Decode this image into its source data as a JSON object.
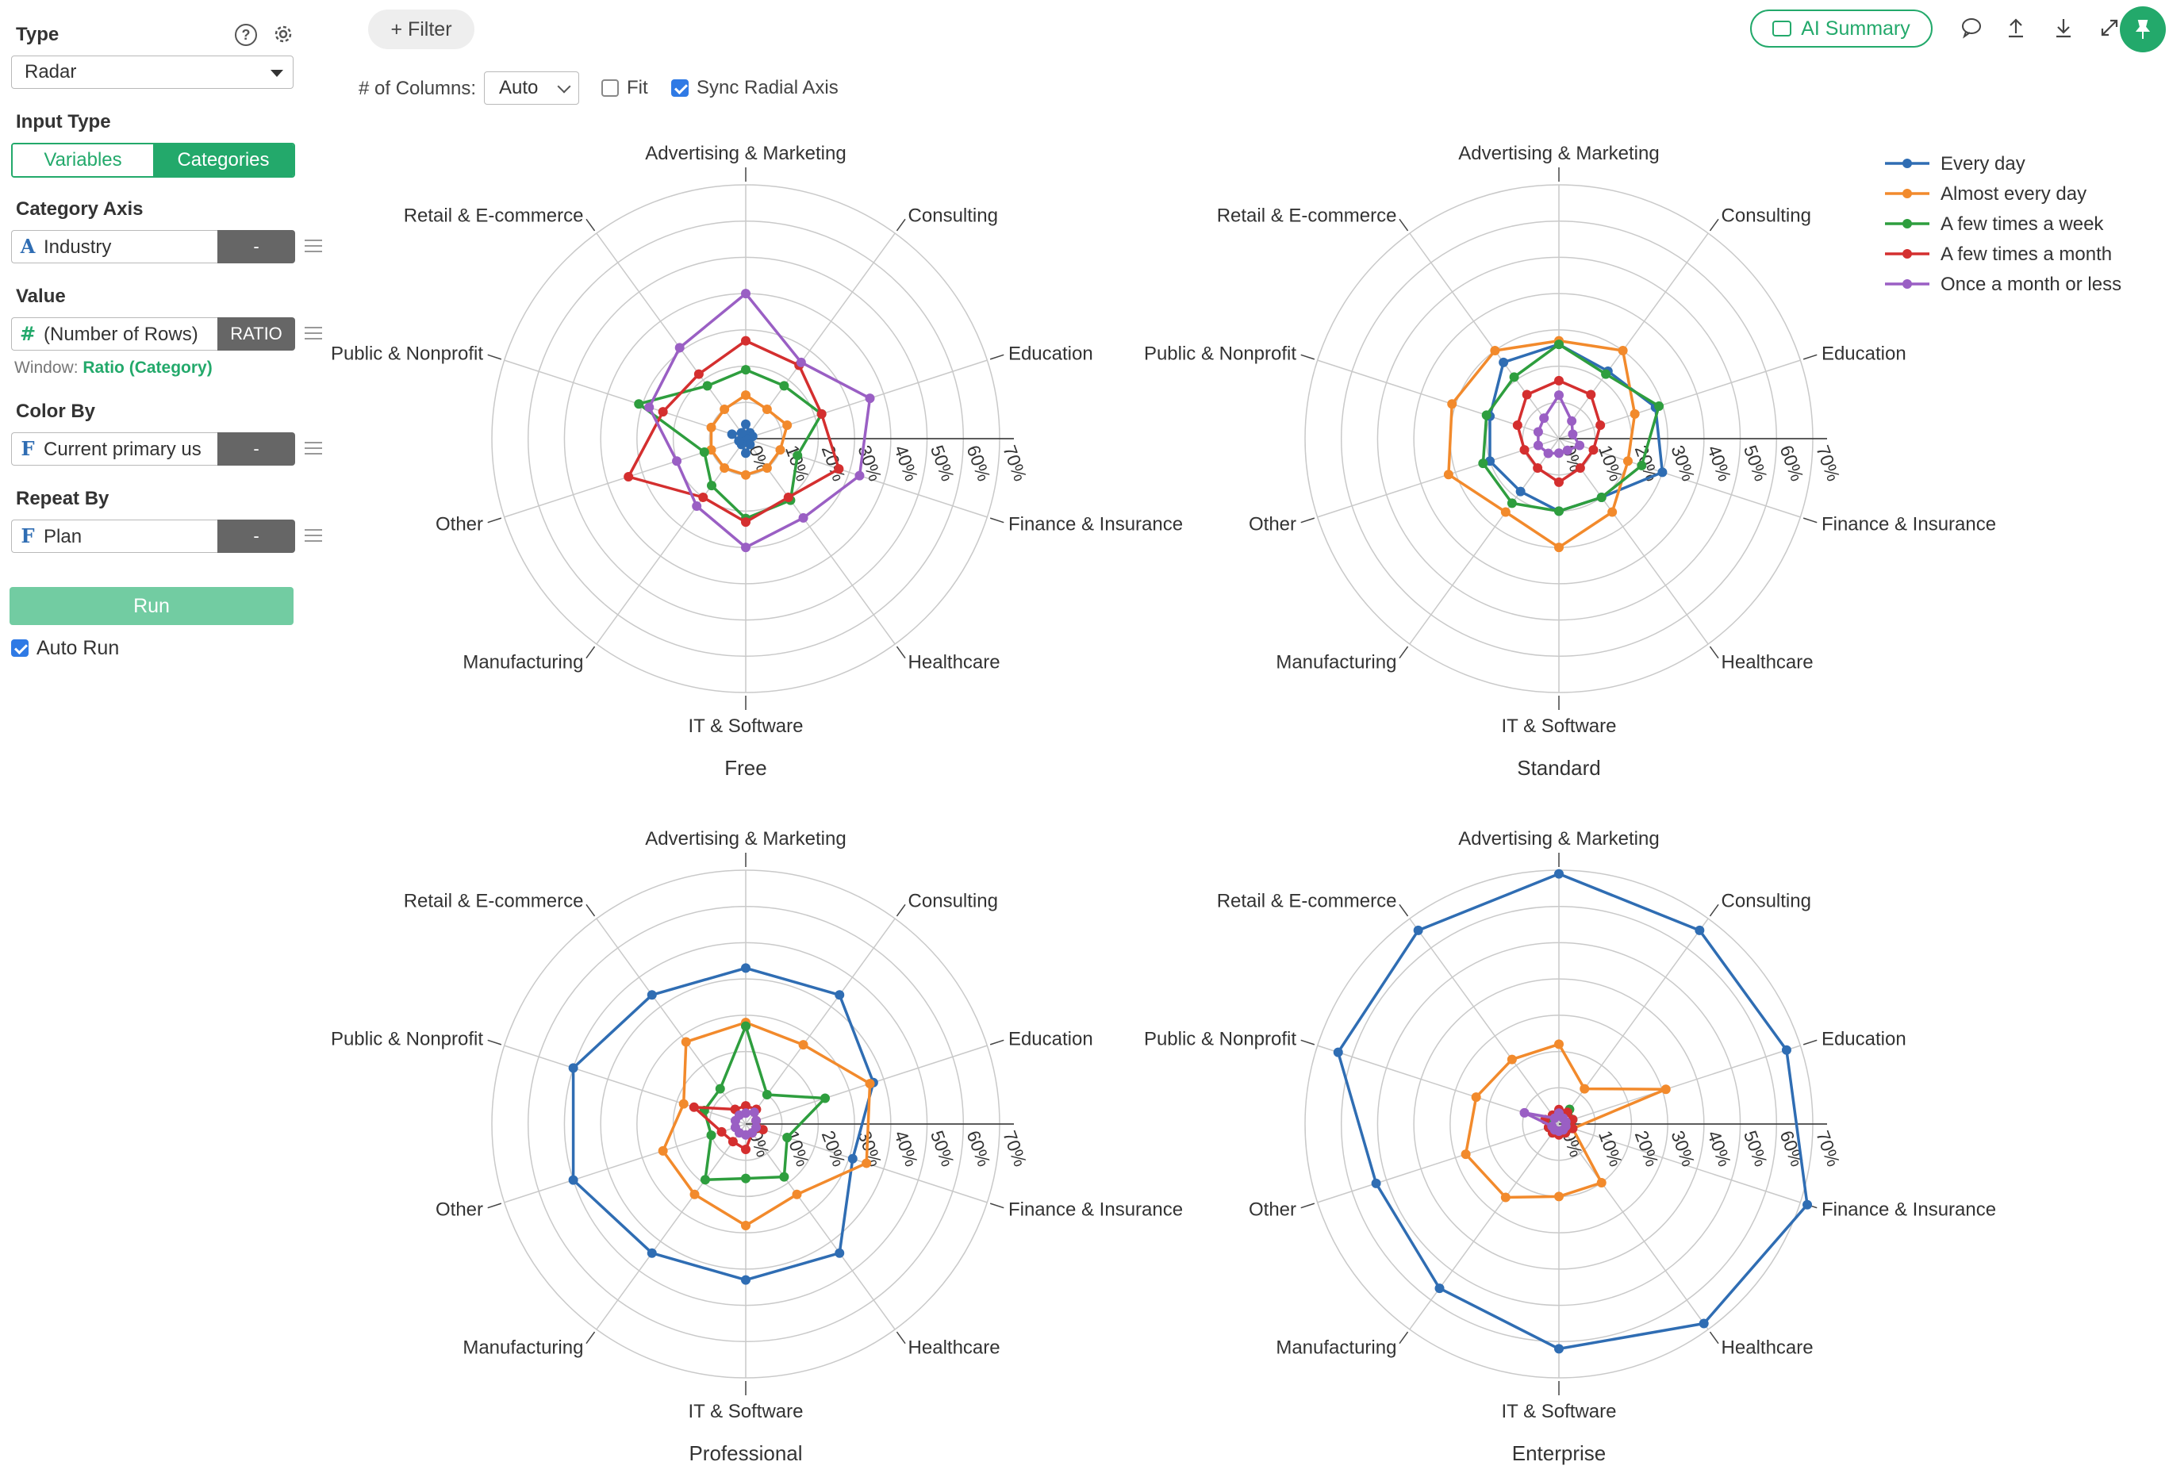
{
  "sidebar": {
    "type_title": "Type",
    "type_value": "Radar",
    "input_type_title": "Input Type",
    "input_type_options": [
      "Variables",
      "Categories"
    ],
    "input_type_selected": "Categories",
    "category_axis_title": "Category Axis",
    "category_axis_field": "Industry",
    "category_axis_icon": "A",
    "category_axis_agg": "-",
    "value_title": "Value",
    "value_field": "(Number of Rows)",
    "value_icon": "#",
    "value_agg": "RATIO",
    "window_label": "Window:",
    "window_value": "Ratio (Category)",
    "color_by_title": "Color By",
    "color_by_field": "Current primary us",
    "color_by_icon": "F",
    "color_by_agg": "-",
    "repeat_by_title": "Repeat By",
    "repeat_by_field": "Plan",
    "repeat_by_icon": "F",
    "repeat_by_agg": "-",
    "run_label": "Run",
    "auto_run_label": "Auto Run",
    "help_icon": "?"
  },
  "toolbar": {
    "filter_label": "+ Filter",
    "columns_label": "# of Columns:",
    "columns_value": "Auto",
    "fit_label": "Fit",
    "fit_checked": false,
    "sync_label": "Sync Radial Axis",
    "sync_checked": true,
    "ai_summary_label": "AI Summary"
  },
  "colors": {
    "accent": "#23a96b",
    "series": [
      "#2f6db3",
      "#f28a2c",
      "#2e9e3e",
      "#d42f2f",
      "#9a5fc4"
    ]
  },
  "chart_data": {
    "type": "radar",
    "categories": [
      "Advertising & Marketing",
      "Consulting",
      "Education",
      "Finance & Insurance",
      "Healthcare",
      "IT & Software",
      "Manufacturing",
      "Other",
      "Public & Nonprofit",
      "Retail & E-commerce"
    ],
    "radial_ticks": [
      "0%",
      "10%",
      "20%",
      "30%",
      "40%",
      "50%",
      "60%",
      "70%"
    ],
    "radial_max": 70,
    "legend": [
      "Every day",
      "Almost every day",
      "A few times a week",
      "A few times a month",
      "Once a month or less"
    ],
    "legend_position": "top-right",
    "panels": [
      {
        "title": "Free",
        "series": [
          {
            "name": "Every day",
            "values": [
              4,
              2,
              2,
              0,
              2,
              4,
              2,
              2,
              4,
              2
            ]
          },
          {
            "name": "Almost every day",
            "values": [
              12,
              10,
              12,
              10,
              10,
              10,
              10,
              10,
              10,
              10
            ]
          },
          {
            "name": "A few times a week",
            "values": [
              19,
              18,
              22,
              15,
              21,
              22,
              16,
              12,
              31,
              18
            ]
          },
          {
            "name": "A few times a month",
            "values": [
              27,
              25,
              22,
              27,
              20,
              23,
              20,
              34,
              24,
              22
            ]
          },
          {
            "name": "Once a month or less",
            "values": [
              40,
              26,
              36,
              33,
              27,
              30,
              23,
              20,
              28,
              31
            ]
          }
        ]
      },
      {
        "title": "Standard",
        "series": [
          {
            "name": "Every day",
            "values": [
              26,
              23,
              28,
              30,
              20,
              20,
              18,
              20,
              20,
              26
            ]
          },
          {
            "name": "Almost every day",
            "values": [
              27,
              30,
              22,
              20,
              25,
              30,
              25,
              32,
              31,
              30
            ]
          },
          {
            "name": "A few times a week",
            "values": [
              26,
              22,
              29,
              24,
              20,
              20,
              22,
              22,
              21,
              21
            ]
          },
          {
            "name": "A few times a month",
            "values": [
              16,
              15,
              12,
              10,
              10,
              12,
              10,
              10,
              12,
              15
            ]
          },
          {
            "name": "Once a month or less",
            "values": [
              12,
              6,
              4,
              6,
              4,
              4,
              5,
              6,
              6,
              7
            ]
          }
        ]
      },
      {
        "title": "Professional",
        "series": [
          {
            "name": "Every day",
            "values": [
              43,
              44,
              37,
              31,
              44,
              43,
              44,
              50,
              50,
              44
            ]
          },
          {
            "name": "Almost every day",
            "values": [
              28,
              27,
              36,
              35,
              24,
              28,
              24,
              24,
              18,
              28
            ]
          },
          {
            "name": "A few times a week",
            "values": [
              27,
              10,
              23,
              12,
              18,
              15,
              19,
              10,
              12,
              12
            ]
          },
          {
            "name": "A few times a month",
            "values": [
              5,
              5,
              3,
              5,
              3,
              7,
              6,
              7,
              15,
              5
            ]
          },
          {
            "name": "Once a month or less",
            "values": [
              3,
              4,
              3,
              3,
              3,
              3,
              3,
              3,
              3,
              3
            ]
          }
        ]
      },
      {
        "title": "Enterprise",
        "series": [
          {
            "name": "Every day",
            "values": [
              69,
              66,
              66,
              72,
              68,
              62,
              56,
              53,
              64,
              66
            ]
          },
          {
            "name": "Almost every day",
            "values": [
              22,
              12,
              31,
              4,
              20,
              20,
              25,
              27,
              24,
              22
            ]
          },
          {
            "name": "A few times a week",
            "values": [
              3,
              5,
              4,
              3,
              3,
              2,
              3,
              3,
              3,
              3
            ]
          },
          {
            "name": "A few times a month",
            "values": [
              4,
              4,
              4,
              4,
              3,
              3,
              3,
              3,
              4,
              3
            ]
          },
          {
            "name": "Once a month or less",
            "values": [
              3,
              2,
              2,
              2,
              2,
              2,
              2,
              2,
              10,
              2
            ]
          }
        ]
      }
    ]
  }
}
